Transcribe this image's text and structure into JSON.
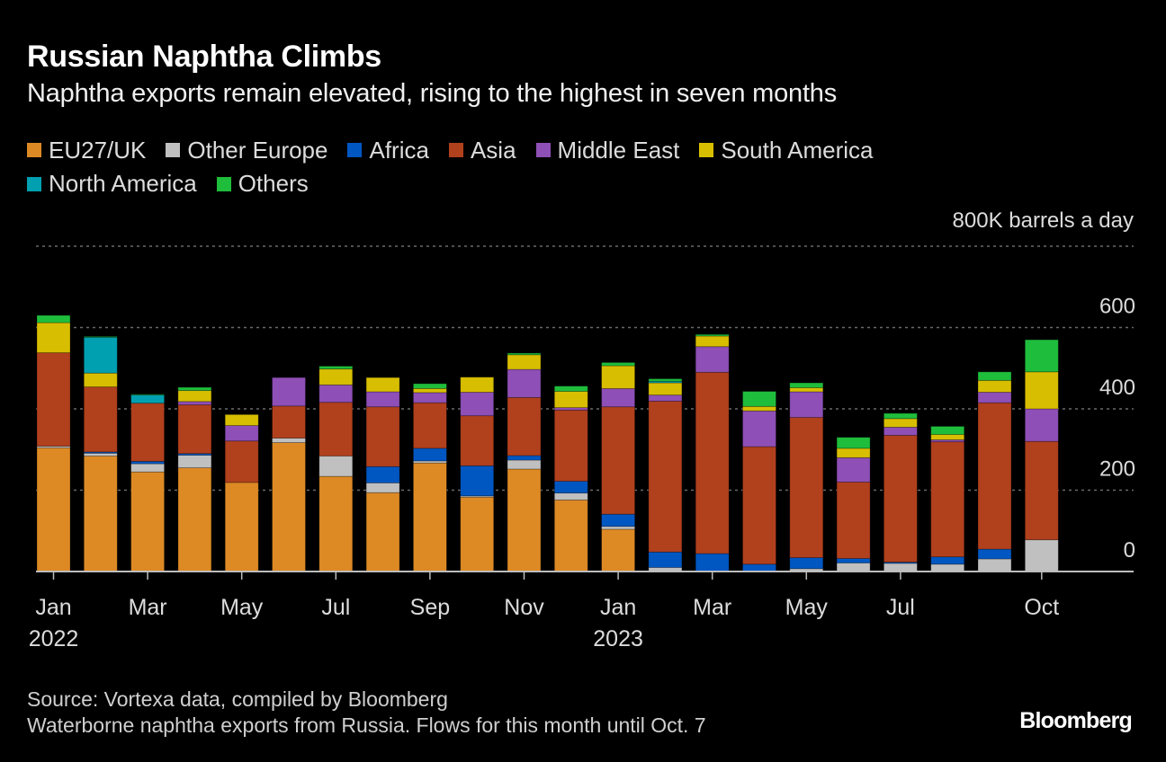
{
  "header": {
    "title": "Russian Naphtha Climbs",
    "subtitle": "Naphtha exports remain elevated, rising to the highest in seven months"
  },
  "footer": {
    "source": "Source: Vortexa data, compiled by Bloomberg",
    "note": "Waterborne naphtha exports from Russia. Flows for this month until Oct. 7",
    "logo": "Bloomberg"
  },
  "chart_data": {
    "type": "bar",
    "stacked": true,
    "title": "Russian Naphtha Climbs",
    "subtitle": "Naphtha exports remain elevated, rising to the highest in seven months",
    "xlabel": "",
    "ylabel": "800K barrels a day",
    "unit_label": "800K barrels a day",
    "ylim": [
      0,
      800
    ],
    "yticks": [
      0,
      200,
      400,
      600,
      800
    ],
    "ytick_labels": [
      "0",
      "200",
      "400",
      "600",
      "800K barrels a day"
    ],
    "grid": true,
    "legend_position": "top-left",
    "categories": [
      "2022-01",
      "2022-02",
      "2022-03",
      "2022-04",
      "2022-05",
      "2022-06",
      "2022-07",
      "2022-08",
      "2022-09",
      "2022-10",
      "2022-11",
      "2022-12",
      "2023-01",
      "2023-02",
      "2023-03",
      "2023-04",
      "2023-05",
      "2023-06",
      "2023-07",
      "2023-08",
      "2023-09",
      "2023-10"
    ],
    "x_tick_labels": [
      {
        "index": 0,
        "label": "Jan",
        "sublabel": "2022"
      },
      {
        "index": 2,
        "label": "Mar",
        "sublabel": ""
      },
      {
        "index": 4,
        "label": "May",
        "sublabel": ""
      },
      {
        "index": 6,
        "label": "Jul",
        "sublabel": ""
      },
      {
        "index": 8,
        "label": "Sep",
        "sublabel": ""
      },
      {
        "index": 10,
        "label": "Nov",
        "sublabel": ""
      },
      {
        "index": 12,
        "label": "Jan",
        "sublabel": "2023"
      },
      {
        "index": 14,
        "label": "Mar",
        "sublabel": ""
      },
      {
        "index": 16,
        "label": "May",
        "sublabel": ""
      },
      {
        "index": 18,
        "label": "Jul",
        "sublabel": ""
      },
      {
        "index": 21,
        "label": "Oct",
        "sublabel": ""
      }
    ],
    "series": [
      {
        "name": "EU27/UK",
        "color": "#dd8a25",
        "values": [
          304,
          284,
          245,
          255,
          219,
          317,
          234,
          194,
          267,
          183,
          252,
          176,
          104,
          0,
          0,
          0,
          0,
          0,
          0,
          0,
          0,
          0
        ]
      },
      {
        "name": "Other Europe",
        "color": "#c0c0c0",
        "values": [
          4,
          7,
          20,
          31,
          0,
          11,
          50,
          24,
          5,
          3,
          22,
          17,
          7,
          10,
          0,
          0,
          7,
          21,
          20,
          18,
          31,
          78
        ]
      },
      {
        "name": "Africa",
        "color": "#0057c2",
        "values": [
          0,
          3,
          6,
          4,
          0,
          0,
          0,
          40,
          31,
          74,
          11,
          29,
          30,
          38,
          44,
          18,
          27,
          11,
          3,
          18,
          24,
          0
        ]
      },
      {
        "name": "Asia",
        "color": "#b1401d",
        "values": [
          230,
          160,
          143,
          120,
          102,
          79,
          132,
          147,
          112,
          123,
          143,
          175,
          264,
          371,
          446,
          289,
          345,
          188,
          312,
          283,
          360,
          242
        ]
      },
      {
        "name": "Middle East",
        "color": "#8e4fb6",
        "values": [
          0,
          0,
          0,
          8,
          38,
          70,
          43,
          37,
          25,
          58,
          69,
          6,
          45,
          15,
          63,
          88,
          63,
          60,
          20,
          5,
          26,
          80
        ]
      },
      {
        "name": "South America",
        "color": "#d8be00",
        "values": [
          74,
          34,
          0,
          27,
          27,
          0,
          39,
          35,
          10,
          37,
          36,
          40,
          56,
          30,
          26,
          11,
          10,
          23,
          21,
          13,
          29,
          91
        ]
      },
      {
        "name": "North America",
        "color": "#00a0b0",
        "values": [
          0,
          88,
          20,
          0,
          0,
          0,
          0,
          0,
          0,
          0,
          0,
          0,
          0,
          4,
          0,
          0,
          0,
          0,
          0,
          0,
          0,
          0
        ]
      },
      {
        "name": "Others",
        "color": "#1fbd3c",
        "values": [
          18,
          2,
          2,
          8,
          0,
          0,
          7,
          0,
          12,
          0,
          4,
          13,
          8,
          6,
          4,
          37,
          12,
          27,
          13,
          20,
          21,
          79
        ]
      }
    ]
  }
}
